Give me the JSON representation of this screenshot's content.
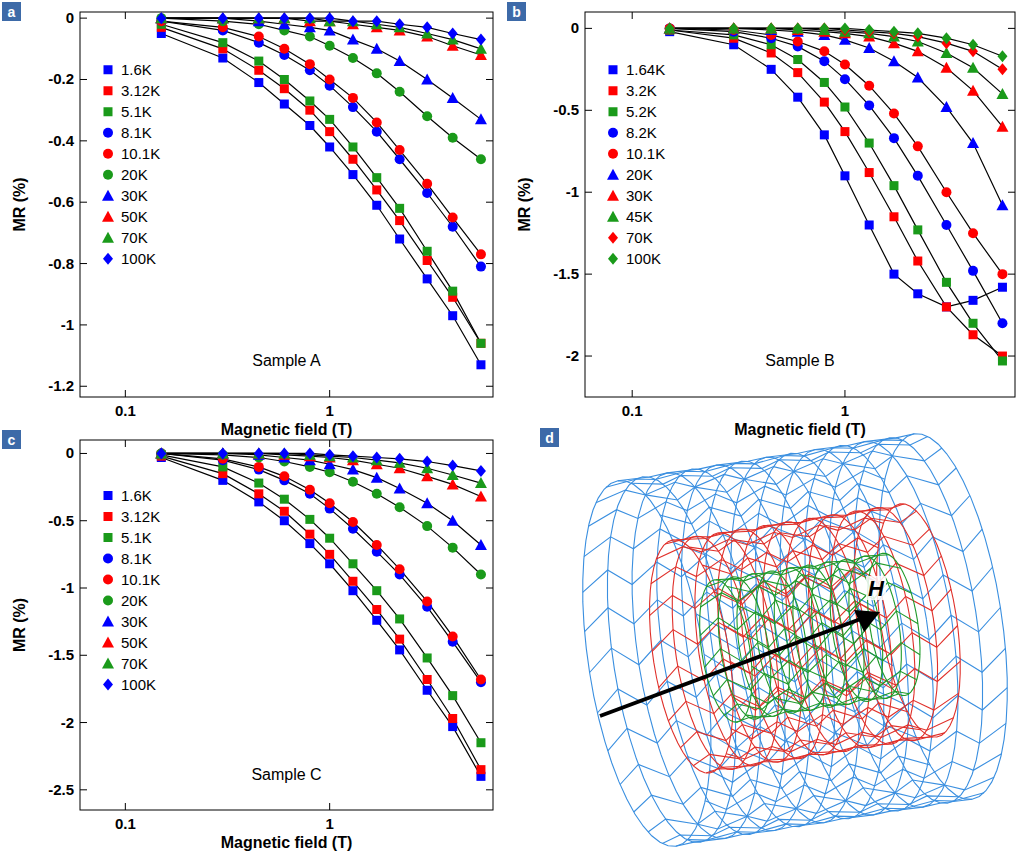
{
  "chart_data": [
    {
      "type": "scatter",
      "panel": "a",
      "x_label": "Magnetic field (T)",
      "y_label": "MR (%)",
      "annotations": [
        "Sample A"
      ],
      "log": "x",
      "legend": "upper left",
      "line_style": "solid",
      "xlim": [
        0.06,
        6.3
      ],
      "xticks": [
        0.1,
        1
      ],
      "ylim": [
        -1.235,
        0.02
      ],
      "yticks": [
        0,
        -0.2,
        -0.4,
        -0.6,
        -0.8,
        -1,
        -1.2
      ],
      "x": [
        0.15,
        0.3,
        0.45,
        0.6,
        0.8,
        1.0,
        1.3,
        1.7,
        2.2,
        3.0,
        4.0,
        5.5
      ],
      "series": [
        {
          "name": "1.6K",
          "color": "#0000ff",
          "marker": "square",
          "values": [
            -0.05,
            -0.13,
            -0.21,
            -0.28,
            -0.35,
            -0.42,
            -0.51,
            -0.61,
            -0.72,
            -0.85,
            -0.97,
            -1.13
          ]
        },
        {
          "name": "3.12K",
          "color": "#ff0000",
          "marker": "square",
          "values": [
            -0.03,
            -0.1,
            -0.17,
            -0.23,
            -0.3,
            -0.37,
            -0.46,
            -0.56,
            -0.66,
            -0.79,
            -0.91,
            -1.06
          ]
        },
        {
          "name": "5.1K",
          "color": "#1a9a1a",
          "marker": "square",
          "values": [
            -0.02,
            -0.08,
            -0.14,
            -0.2,
            -0.27,
            -0.33,
            -0.42,
            -0.52,
            -0.62,
            -0.76,
            -0.89,
            -1.06
          ]
        },
        {
          "name": "8.1K",
          "color": "#0000ff",
          "marker": "circle",
          "values": [
            -0.01,
            -0.04,
            -0.08,
            -0.12,
            -0.17,
            -0.22,
            -0.29,
            -0.37,
            -0.46,
            -0.57,
            -0.68,
            -0.81
          ]
        },
        {
          "name": "10.1K",
          "color": "#ff0000",
          "marker": "circle",
          "values": [
            -0.01,
            -0.03,
            -0.06,
            -0.1,
            -0.15,
            -0.2,
            -0.26,
            -0.34,
            -0.43,
            -0.54,
            -0.65,
            -0.77
          ]
        },
        {
          "name": "20K",
          "color": "#1a9a1a",
          "marker": "circle",
          "values": [
            0,
            -0.01,
            -0.02,
            -0.04,
            -0.06,
            -0.09,
            -0.13,
            -0.18,
            -0.24,
            -0.32,
            -0.39,
            -0.46
          ]
        },
        {
          "name": "30K",
          "color": "#0000ff",
          "marker": "triangle",
          "values": [
            0,
            0,
            -0.01,
            -0.02,
            -0.03,
            -0.04,
            -0.07,
            -0.1,
            -0.14,
            -0.2,
            -0.26,
            -0.33
          ]
        },
        {
          "name": "50K",
          "color": "#ff0000",
          "marker": "triangle",
          "values": [
            0,
            0,
            0,
            0,
            -0.01,
            -0.01,
            -0.02,
            -0.03,
            -0.04,
            -0.06,
            -0.09,
            -0.12
          ]
        },
        {
          "name": "70K",
          "color": "#1a9a1a",
          "marker": "triangle",
          "values": [
            0,
            0,
            0,
            0,
            0,
            -0.01,
            -0.01,
            -0.02,
            -0.03,
            -0.05,
            -0.07,
            -0.1
          ]
        },
        {
          "name": "100K",
          "color": "#0000ff",
          "marker": "diamond",
          "values": [
            0,
            0,
            0,
            0,
            0,
            0,
            -0.01,
            -0.01,
            -0.02,
            -0.03,
            -0.05,
            -0.07
          ]
        }
      ]
    },
    {
      "type": "scatter",
      "panel": "b",
      "x_label": "Magnetic field (T)",
      "y_label": "MR (%)",
      "annotations": [
        "Sample B"
      ],
      "log": "x",
      "legend": "upper left",
      "line_style": "solid",
      "xlim": [
        0.06,
        6.3
      ],
      "xticks": [
        0.1,
        1
      ],
      "ylim": [
        -2.25,
        0.1
      ],
      "yticks": [
        0,
        -0.5,
        -1,
        -1.5,
        -2
      ],
      "x": [
        0.15,
        0.3,
        0.45,
        0.6,
        0.8,
        1.0,
        1.3,
        1.7,
        2.2,
        3.0,
        4.0,
        5.5
      ],
      "series": [
        {
          "name": "1.64K",
          "color": "#0000ff",
          "marker": "square",
          "values": [
            -0.02,
            -0.1,
            -0.25,
            -0.42,
            -0.65,
            -0.9,
            -1.2,
            -1.5,
            -1.62,
            -1.7,
            -1.66,
            -1.58
          ]
        },
        {
          "name": "3.2K",
          "color": "#ff0000",
          "marker": "square",
          "values": [
            -0.01,
            -0.06,
            -0.15,
            -0.27,
            -0.45,
            -0.63,
            -0.88,
            -1.15,
            -1.42,
            -1.7,
            -1.87,
            -2.0
          ]
        },
        {
          "name": "5.2K",
          "color": "#1a9a1a",
          "marker": "square",
          "values": [
            -0.01,
            -0.04,
            -0.1,
            -0.19,
            -0.33,
            -0.48,
            -0.7,
            -0.96,
            -1.23,
            -1.55,
            -1.8,
            -2.03
          ]
        },
        {
          "name": "8.2K",
          "color": "#0000ff",
          "marker": "circle",
          "values": [
            0,
            -0.02,
            -0.06,
            -0.11,
            -0.2,
            -0.31,
            -0.47,
            -0.67,
            -0.9,
            -1.2,
            -1.48,
            -1.8
          ]
        },
        {
          "name": "10.1K",
          "color": "#ff0000",
          "marker": "circle",
          "values": [
            0,
            -0.01,
            -0.04,
            -0.08,
            -0.14,
            -0.22,
            -0.35,
            -0.52,
            -0.72,
            -1.0,
            -1.25,
            -1.5
          ]
        },
        {
          "name": "20K",
          "color": "#0000ff",
          "marker": "triangle",
          "values": [
            0,
            0,
            -0.01,
            -0.02,
            -0.04,
            -0.07,
            -0.12,
            -0.2,
            -0.3,
            -0.48,
            -0.7,
            -1.08
          ]
        },
        {
          "name": "30K",
          "color": "#ff0000",
          "marker": "triangle",
          "values": [
            0,
            0,
            0,
            -0.01,
            -0.02,
            -0.03,
            -0.05,
            -0.09,
            -0.14,
            -0.24,
            -0.38,
            -0.6
          ]
        },
        {
          "name": "45K",
          "color": "#1a9a1a",
          "marker": "triangle",
          "values": [
            0,
            0,
            0,
            0,
            -0.01,
            -0.02,
            -0.03,
            -0.05,
            -0.08,
            -0.15,
            -0.24,
            -0.4
          ]
        },
        {
          "name": "70K",
          "color": "#ff0000",
          "marker": "diamond",
          "values": [
            0,
            0,
            0,
            0,
            0,
            -0.01,
            -0.02,
            -0.03,
            -0.05,
            -0.09,
            -0.14,
            -0.25
          ]
        },
        {
          "name": "100K",
          "color": "#1a9a1a",
          "marker": "diamond",
          "values": [
            0,
            0,
            0,
            0,
            0,
            0,
            -0.01,
            -0.02,
            -0.03,
            -0.06,
            -0.1,
            -0.17
          ]
        }
      ]
    },
    {
      "type": "scatter",
      "panel": "c",
      "x_label": "Magnetic field (T)",
      "y_label": "MR (%)",
      "annotations": [
        "Sample C"
      ],
      "log": "x",
      "legend": "upper left",
      "line_style": "solid",
      "xlim": [
        0.06,
        6.3
      ],
      "xticks": [
        0.1,
        1
      ],
      "ylim": [
        -2.65,
        0.1
      ],
      "yticks": [
        0,
        -0.5,
        -1,
        -1.5,
        -2,
        -2.5
      ],
      "x": [
        0.15,
        0.3,
        0.45,
        0.6,
        0.8,
        1.0,
        1.3,
        1.7,
        2.2,
        3.0,
        4.0,
        5.5
      ],
      "series": [
        {
          "name": "1.6K",
          "color": "#0000ff",
          "marker": "square",
          "values": [
            -0.03,
            -0.2,
            -0.36,
            -0.5,
            -0.67,
            -0.82,
            -1.02,
            -1.24,
            -1.46,
            -1.76,
            -2.03,
            -2.4
          ]
        },
        {
          "name": "3.12K",
          "color": "#ff0000",
          "marker": "square",
          "values": [
            -0.02,
            -0.15,
            -0.3,
            -0.43,
            -0.6,
            -0.75,
            -0.95,
            -1.16,
            -1.38,
            -1.68,
            -1.97,
            -2.35
          ]
        },
        {
          "name": "5.1K",
          "color": "#1a9a1a",
          "marker": "square",
          "values": [
            -0.01,
            -0.1,
            -0.22,
            -0.34,
            -0.49,
            -0.63,
            -0.82,
            -1.02,
            -1.23,
            -1.52,
            -1.8,
            -2.15
          ]
        },
        {
          "name": "8.1K",
          "color": "#0000ff",
          "marker": "circle",
          "values": [
            0,
            -0.05,
            -0.12,
            -0.2,
            -0.3,
            -0.41,
            -0.56,
            -0.73,
            -0.9,
            -1.14,
            -1.4,
            -1.7
          ]
        },
        {
          "name": "10.1K",
          "color": "#ff0000",
          "marker": "circle",
          "values": [
            0,
            -0.04,
            -0.1,
            -0.17,
            -0.27,
            -0.37,
            -0.51,
            -0.68,
            -0.86,
            -1.1,
            -1.36,
            -1.68
          ]
        },
        {
          "name": "20K",
          "color": "#1a9a1a",
          "marker": "circle",
          "values": [
            0,
            -0.01,
            -0.03,
            -0.06,
            -0.1,
            -0.14,
            -0.21,
            -0.3,
            -0.4,
            -0.54,
            -0.7,
            -0.9
          ]
        },
        {
          "name": "30K",
          "color": "#0000ff",
          "marker": "triangle",
          "values": [
            0,
            0,
            -0.01,
            -0.03,
            -0.05,
            -0.08,
            -0.12,
            -0.18,
            -0.26,
            -0.37,
            -0.5,
            -0.68
          ]
        },
        {
          "name": "50K",
          "color": "#ff0000",
          "marker": "triangle",
          "values": [
            0,
            0,
            0,
            -0.01,
            -0.02,
            -0.03,
            -0.05,
            -0.08,
            -0.11,
            -0.17,
            -0.23,
            -0.32
          ]
        },
        {
          "name": "70K",
          "color": "#1a9a1a",
          "marker": "triangle",
          "values": [
            0,
            0,
            0,
            0,
            -0.01,
            -0.02,
            -0.03,
            -0.05,
            -0.07,
            -0.11,
            -0.16,
            -0.22
          ]
        },
        {
          "name": "100K",
          "color": "#0000ff",
          "marker": "diamond",
          "values": [
            0,
            0,
            0,
            0,
            0,
            -0.01,
            -0.02,
            -0.03,
            -0.04,
            -0.06,
            -0.09,
            -0.13
          ]
        }
      ]
    },
    {
      "type": "diagram",
      "panel": "d",
      "annotations": [
        "H"
      ]
    }
  ]
}
